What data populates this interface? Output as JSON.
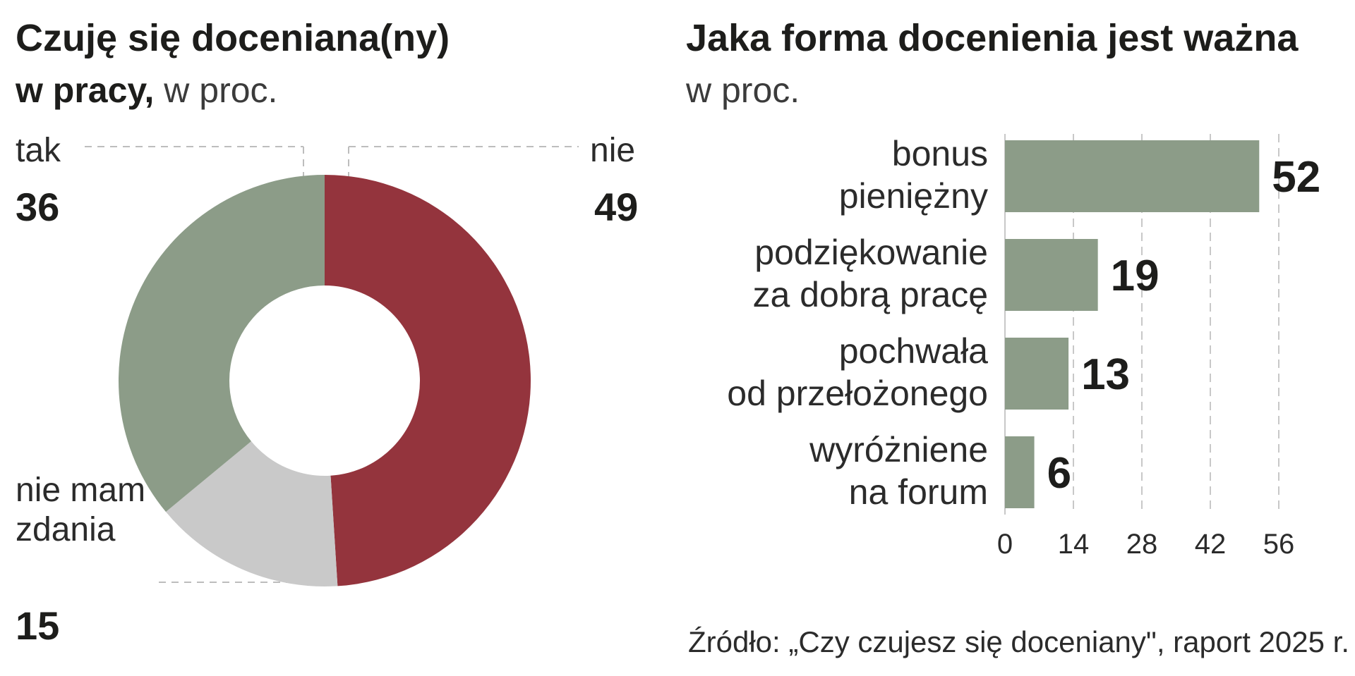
{
  "charts": {
    "left": {
      "title_bold_1": "Czuję się doceniana(ny)",
      "title_bold_2": "w pracy,",
      "title_light_2": " w proc."
    },
    "right": {
      "title": "Jaka forma docenienia jest ważna",
      "subtitle": "w proc."
    }
  },
  "source": "Źródło: „Czy czujesz się doceniany\", raport 2025 r.",
  "chart_data": [
    {
      "type": "pie",
      "donut": true,
      "slices": [
        {
          "label": "nie",
          "value": 49,
          "color": "#94343d"
        },
        {
          "label": "nie mam zdania",
          "value": 15,
          "color": "#c9c9c9"
        },
        {
          "label": "tak",
          "value": 36,
          "color": "#8c9c88"
        }
      ],
      "unit": "%"
    },
    {
      "type": "bar",
      "orientation": "horizontal",
      "categories": [
        [
          "bonus",
          "pieniężny"
        ],
        [
          "podziękowanie",
          "za dobrą pracę"
        ],
        [
          "pochwała",
          "od przełożonego"
        ],
        [
          "wyróżniene",
          "na forum"
        ]
      ],
      "values": [
        52,
        19,
        13,
        6
      ],
      "xlim": [
        0,
        56
      ],
      "xticks": [
        "0",
        "14",
        "28",
        "42",
        "56"
      ],
      "bar_color": "#8c9c88",
      "grid": true
    }
  ]
}
